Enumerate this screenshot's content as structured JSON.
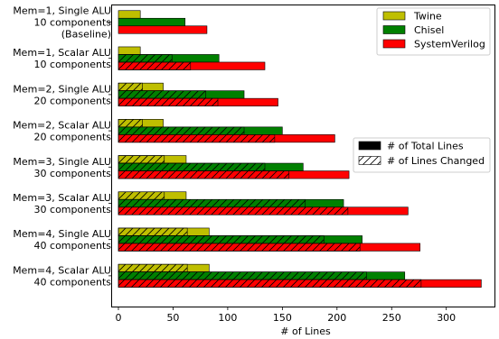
{
  "chart_data": {
    "type": "bar",
    "orientation": "horizontal",
    "categories": [
      [
        "Mem=1, Single ALU",
        "10 components",
        "(Baseline)"
      ],
      [
        "Mem=1, Scalar ALU",
        "10 components"
      ],
      [
        "Mem=2, Single ALU",
        "20 components"
      ],
      [
        "Mem=2, Scalar ALU",
        "20 components"
      ],
      [
        "Mem=3, Single ALU",
        "30 components"
      ],
      [
        "Mem=3, Scalar ALU",
        "30 components"
      ],
      [
        "Mem=4, Single ALU",
        "40 components"
      ],
      [
        "Mem=4, Scalar ALU",
        "40 components"
      ]
    ],
    "series": [
      {
        "name": "Twine",
        "color": "#bfbf00",
        "total": [
          20,
          20,
          41,
          41,
          62,
          62,
          83,
          83
        ],
        "changed": [
          null,
          0,
          22,
          22,
          42,
          42,
          63,
          63
        ]
      },
      {
        "name": "Chisel",
        "color": "#008000",
        "total": [
          61,
          92,
          115,
          150,
          169,
          206,
          223,
          262
        ],
        "changed": [
          null,
          49,
          80,
          115,
          134,
          171,
          188,
          227
        ]
      },
      {
        "name": "SystemVerilog",
        "color": "#ff0000",
        "total": [
          81,
          134,
          146,
          198,
          211,
          265,
          276,
          332
        ],
        "changed": [
          null,
          66,
          91,
          143,
          156,
          210,
          221,
          277
        ]
      }
    ],
    "xlabel": "# of Lines",
    "xlim": [
      0,
      345
    ],
    "xticks": [
      0,
      50,
      100,
      150,
      200,
      250,
      300
    ],
    "legend_series": [
      "Twine",
      "Chisel",
      "SystemVerilog"
    ],
    "legend_style": [
      "# of Total Lines",
      "# of Lines Changed"
    ],
    "legend_placement": "top-right"
  }
}
